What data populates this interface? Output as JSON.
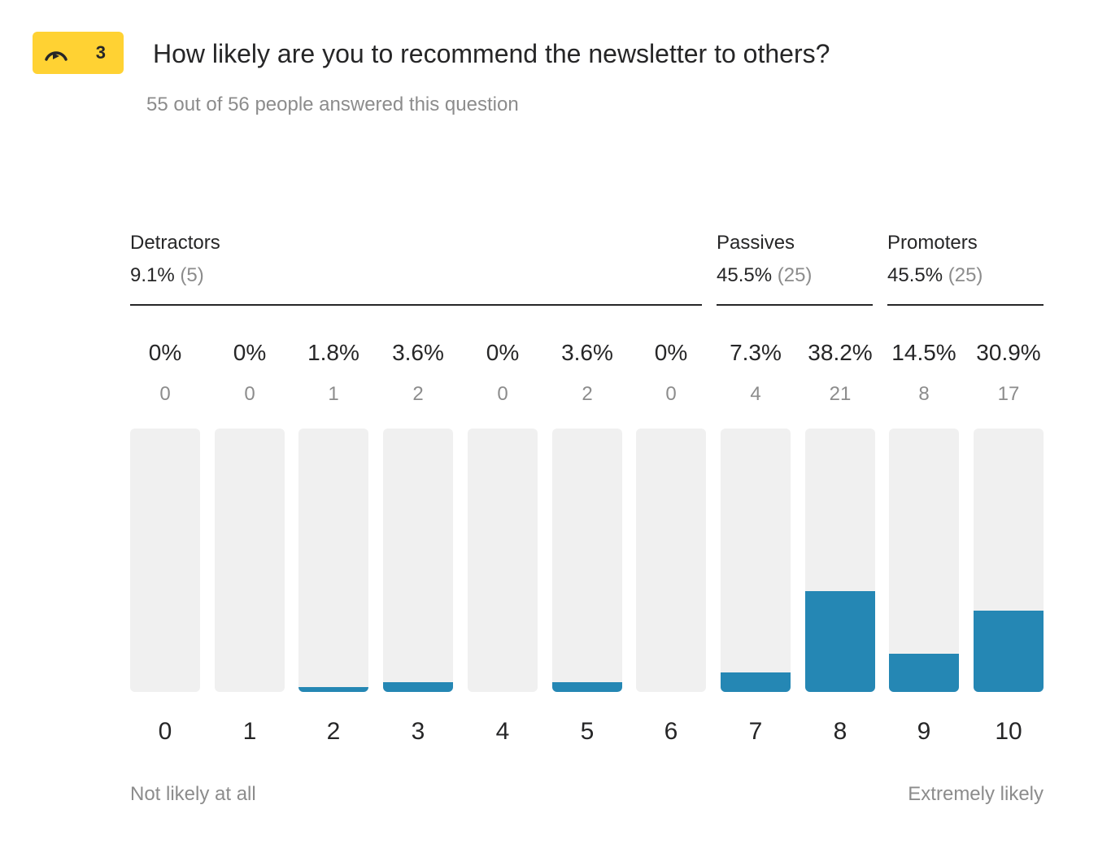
{
  "badge": {
    "number": "3",
    "icon": "gauge-icon",
    "color": "#ffd233"
  },
  "question": "How likely are you to recommend the newsletter to others?",
  "subtitle": "55 out of 56 people answered this question",
  "groups": [
    {
      "name": "Detractors",
      "percent": "9.1%",
      "count": "(5)"
    },
    {
      "name": "Passives",
      "percent": "45.5%",
      "count": "(25)"
    },
    {
      "name": "Promoters",
      "percent": "45.5%",
      "count": "(25)"
    }
  ],
  "scale": {
    "low_label": "Not likely at all",
    "high_label": "Extremely likely"
  },
  "colors": {
    "bar": "#2587b4",
    "track": "#f0f0f0"
  },
  "chart_data": {
    "type": "bar",
    "categories": [
      "0",
      "1",
      "2",
      "3",
      "4",
      "5",
      "6",
      "7",
      "8",
      "9",
      "10"
    ],
    "values": [
      0,
      0,
      1,
      2,
      0,
      2,
      0,
      4,
      21,
      8,
      17
    ],
    "percent_labels": [
      "0%",
      "0%",
      "1.8%",
      "3.6%",
      "0%",
      "3.6%",
      "0%",
      "7.3%",
      "38.2%",
      "14.5%",
      "30.9%"
    ],
    "percent_values": [
      0,
      0,
      1.8,
      3.6,
      0,
      3.6,
      0,
      7.3,
      38.2,
      14.5,
      30.9
    ],
    "ylim": [
      0,
      100
    ]
  }
}
